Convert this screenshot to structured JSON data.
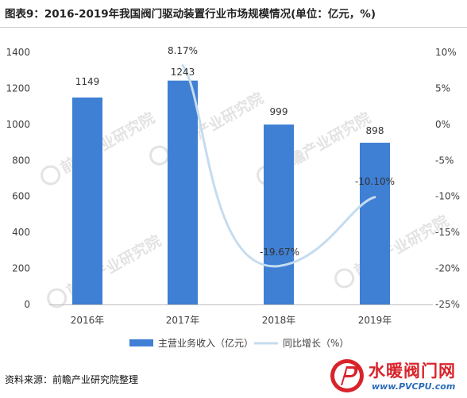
{
  "header": {
    "title": "图表9：2016-2019年我国阀门驱动装置行业市场规模情况(单位：亿元，%)"
  },
  "chart_data": {
    "type": "bar",
    "title": "图表9：2016-2019年我国阀门驱动装置行业市场规模情况(单位：亿元，%)",
    "categories": [
      "2016年",
      "2017年",
      "2018年",
      "2019年"
    ],
    "series": [
      {
        "name": "主营业务收入（亿元）",
        "type": "bar",
        "axis": "left",
        "values": [
          1149,
          1243,
          999,
          898
        ],
        "labels": [
          "1149",
          "1243",
          "999",
          "898"
        ],
        "color": "#3f7fd4"
      },
      {
        "name": "同比增长（%）",
        "type": "line",
        "axis": "right",
        "smooth": true,
        "values": [
          null,
          8.17,
          -19.67,
          -10.1
        ],
        "labels": [
          "",
          "8.17%",
          "-19.67%",
          "-10.10%"
        ],
        "color": "#c5dcef"
      }
    ],
    "y_left": {
      "range": [
        0,
        1400
      ],
      "ticks": [
        0,
        200,
        400,
        600,
        800,
        1000,
        1200,
        1400
      ],
      "tick_labels": [
        "0",
        "200",
        "400",
        "600",
        "800",
        "1000",
        "1200",
        "1400"
      ]
    },
    "y_right": {
      "range": [
        -25,
        10
      ],
      "ticks": [
        -25,
        -20,
        -15,
        -10,
        -5,
        0,
        5,
        10
      ],
      "tick_labels": [
        "-25%",
        "-20%",
        "-15%",
        "-10%",
        "-5%",
        "0%",
        "5%",
        "10%"
      ]
    },
    "grid": false,
    "legend_position": "bottom"
  },
  "watermark": {
    "text": "前瞻产业研究院",
    "color": "#e3e3e3"
  },
  "footer": {
    "source": "资料来源：前瞻产业研究院整理"
  },
  "logo": {
    "text": "水暖阀门网",
    "sub": "www.PVCPU.com",
    "color": "#d8232a",
    "sub_color": "#2a6bb8"
  }
}
